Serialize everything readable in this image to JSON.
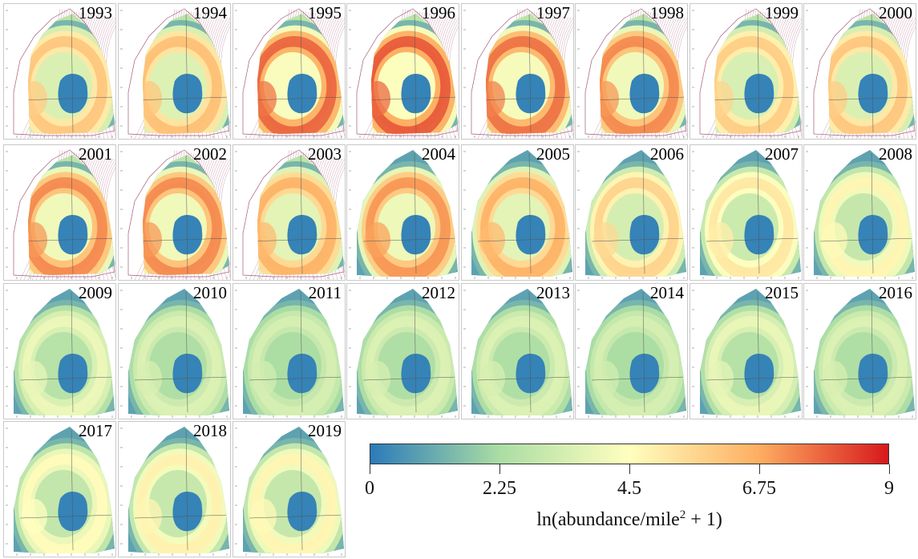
{
  "colors": {
    "low": "#2b7bb9",
    "mid_low": "#abdda4",
    "mid": "#ffffbf",
    "mid_high": "#fdae61",
    "high": "#d7191c",
    "contour": "#a55a7a"
  },
  "panels": [
    {
      "year": "1993",
      "intensity": 0.68,
      "extent": "partial"
    },
    {
      "year": "1994",
      "intensity": 0.7,
      "extent": "partial"
    },
    {
      "year": "1995",
      "intensity": 0.88,
      "extent": "partial"
    },
    {
      "year": "1996",
      "intensity": 0.9,
      "extent": "partial"
    },
    {
      "year": "1997",
      "intensity": 0.86,
      "extent": "partial"
    },
    {
      "year": "1998",
      "intensity": 0.82,
      "extent": "partial"
    },
    {
      "year": "1999",
      "intensity": 0.66,
      "extent": "partial"
    },
    {
      "year": "2000",
      "intensity": 0.68,
      "extent": "partial"
    },
    {
      "year": "2001",
      "intensity": 0.82,
      "extent": "partial"
    },
    {
      "year": "2002",
      "intensity": 0.82,
      "extent": "partial"
    },
    {
      "year": "2003",
      "intensity": 0.74,
      "extent": "partial"
    },
    {
      "year": "2004",
      "intensity": 0.8,
      "extent": "full"
    },
    {
      "year": "2005",
      "intensity": 0.74,
      "extent": "full"
    },
    {
      "year": "2006",
      "intensity": 0.64,
      "extent": "full"
    },
    {
      "year": "2007",
      "intensity": 0.58,
      "extent": "full"
    },
    {
      "year": "2008",
      "intensity": 0.54,
      "extent": "full"
    },
    {
      "year": "2009",
      "intensity": 0.45,
      "extent": "full"
    },
    {
      "year": "2010",
      "intensity": 0.4,
      "extent": "full"
    },
    {
      "year": "2011",
      "intensity": 0.38,
      "extent": "full"
    },
    {
      "year": "2012",
      "intensity": 0.4,
      "extent": "full"
    },
    {
      "year": "2013",
      "intensity": 0.4,
      "extent": "full"
    },
    {
      "year": "2014",
      "intensity": 0.38,
      "extent": "full"
    },
    {
      "year": "2015",
      "intensity": 0.44,
      "extent": "full"
    },
    {
      "year": "2016",
      "intensity": 0.4,
      "extent": "full"
    },
    {
      "year": "2017",
      "intensity": 0.52,
      "extent": "full"
    },
    {
      "year": "2018",
      "intensity": 0.55,
      "extent": "full"
    },
    {
      "year": "2019",
      "intensity": 0.54,
      "extent": "full"
    }
  ],
  "legend": {
    "ticks": [
      {
        "label": "0",
        "value": 0
      },
      {
        "label": "2.25",
        "value": 2.25
      },
      {
        "label": "4.5",
        "value": 4.5
      },
      {
        "label": "6.75",
        "value": 6.75
      },
      {
        "label": "9",
        "value": 9
      }
    ],
    "min": 0,
    "max": 9,
    "title_prefix": "ln(abundance/mile",
    "title_sup": "2",
    "title_suffix": " + 1)"
  }
}
